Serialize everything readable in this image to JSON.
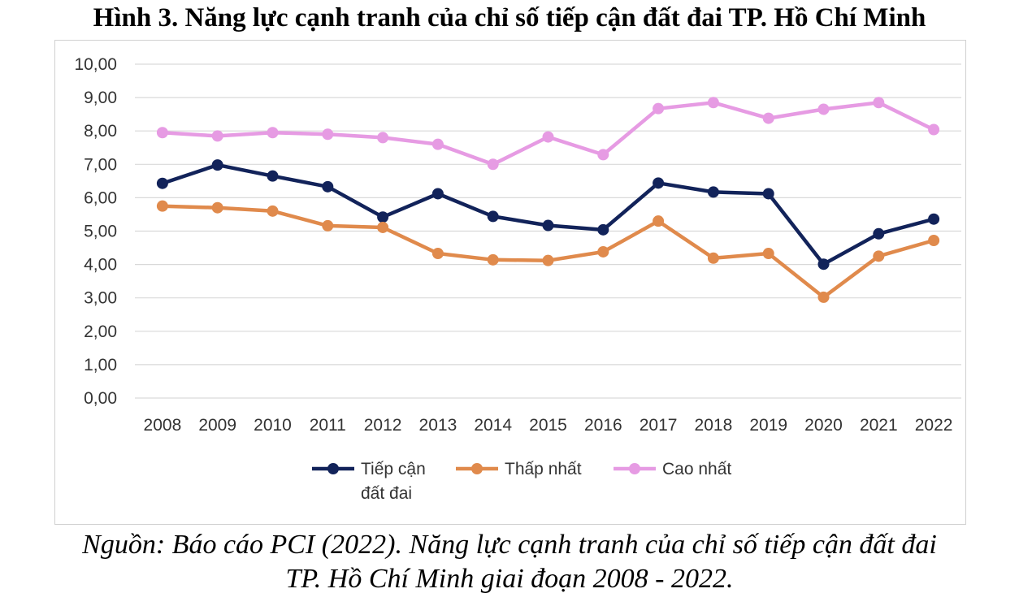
{
  "title": "Hình 3. Năng lực cạnh tranh của chỉ số tiếp cận đất đai TP. Hồ Chí Minh",
  "source_line1": "Nguồn: Báo cáo PCI (2022). Năng lực cạnh tranh của chỉ số tiếp cận đất đai",
  "source_line2": "TP. Hồ Chí Minh giai đoạn 2008 - 2022.",
  "chart_data": {
    "type": "line",
    "x": [
      2008,
      2009,
      2010,
      2011,
      2012,
      2013,
      2014,
      2015,
      2016,
      2017,
      2018,
      2019,
      2020,
      2021,
      2022
    ],
    "ylim": [
      0,
      10
    ],
    "yticks": [
      "0,00",
      "1,00",
      "2,00",
      "3,00",
      "4,00",
      "5,00",
      "6,00",
      "7,00",
      "8,00",
      "9,00",
      "10,00"
    ],
    "grid": true,
    "legend_position": "bottom",
    "series": [
      {
        "name": "Tiếp cận đất đai",
        "legend_lines": [
          "Tiếp cận",
          "đất đai"
        ],
        "color": "#12235a",
        "values": [
          6.43,
          6.98,
          6.65,
          6.33,
          5.42,
          6.12,
          5.44,
          5.17,
          5.04,
          6.44,
          6.17,
          6.12,
          4.01,
          4.92,
          5.36
        ]
      },
      {
        "name": "Thấp nhất",
        "legend_lines": [
          "Thấp nhất"
        ],
        "color": "#e08a4c",
        "values": [
          5.75,
          5.7,
          5.6,
          5.16,
          5.11,
          4.33,
          4.14,
          4.12,
          4.38,
          5.3,
          4.19,
          4.33,
          3.02,
          4.25,
          4.72
        ]
      },
      {
        "name": "Cao nhất",
        "legend_lines": [
          "Cao nhất"
        ],
        "color": "#e69be3",
        "values": [
          7.95,
          7.85,
          7.95,
          7.9,
          7.8,
          7.6,
          7.0,
          7.82,
          7.29,
          8.67,
          8.85,
          8.38,
          8.65,
          8.85,
          8.04
        ]
      }
    ]
  }
}
